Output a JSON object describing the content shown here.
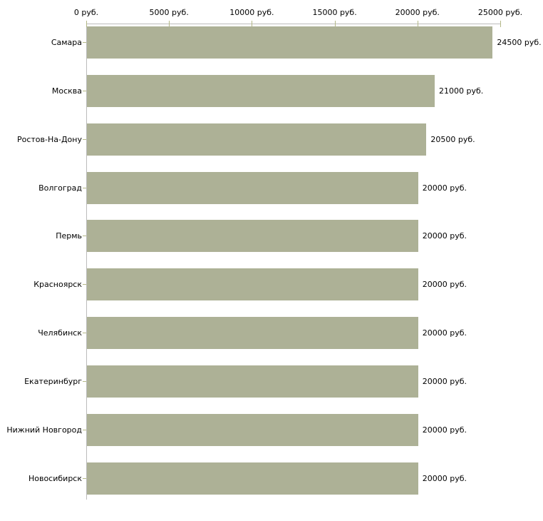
{
  "chart_data": {
    "type": "bar",
    "orientation": "horizontal",
    "title": "",
    "xlabel": "",
    "ylabel": "",
    "unit": "руб.",
    "xlim": [
      0,
      25000
    ],
    "grid": false,
    "legend": null,
    "categories": [
      "Самара",
      "Москва",
      "Ростов-На-Дону",
      "Волгоград",
      "Пермь",
      "Красноярск",
      "Челябинск",
      "Екатеринбург",
      "Нижний Новгород",
      "Новосибирск"
    ],
    "values": [
      24500,
      21000,
      20500,
      20000,
      20000,
      20000,
      20000,
      20000,
      20000,
      20000
    ],
    "value_labels": [
      "24500 руб.",
      "21000 руб.",
      "20500 руб.",
      "20000 руб.",
      "20000 руб.",
      "20000 руб.",
      "20000 руб.",
      "20000 руб.",
      "20000 руб.",
      "20000 руб."
    ],
    "x_ticks": {
      "values": [
        0,
        5000,
        10000,
        15000,
        20000,
        25000
      ],
      "labels": [
        "0 руб.",
        "5000 руб.",
        "10000 руб.",
        "15000 руб.",
        "20000 руб.",
        "25000 руб."
      ]
    },
    "colors": {
      "bar": "#adb196",
      "axis_line": "#bcbcbc",
      "tick": "#b4b887",
      "text": "#000000",
      "background": "#ffffff"
    }
  }
}
